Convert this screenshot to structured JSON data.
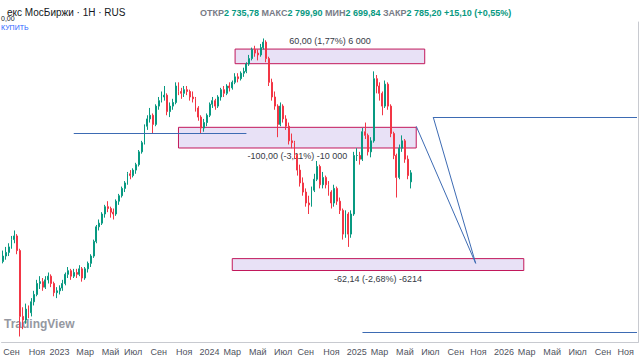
{
  "chart_data": {
    "type": "candlestick",
    "title": "екс МосБиржи · 1Н · RUS",
    "header_values": [
      {
        "label": "ОТКР",
        "text": "2 735,78"
      },
      {
        "label": "МАКС",
        "text": "2 799,90"
      },
      {
        "label": "МИН",
        "text": "2 699,84"
      },
      {
        "label": "ЗАКР",
        "text": "2 785,20"
      }
    ],
    "change": "+15,10 (+0,55%)",
    "widget": {
      "spread": "0,00",
      "button": "КУПИТЬ"
    },
    "watermark": "TradingView",
    "price_tag": "RUS",
    "grid": false,
    "tick_labels": "x",
    "ylim": [
      1860,
      3610
    ],
    "categories": [
      null,
      null,
      null,
      "Сен",
      null,
      null,
      null,
      null,
      null,
      null,
      null,
      null,
      "Ноя",
      null,
      null,
      null,
      null,
      null,
      null,
      null,
      "2023",
      null,
      null,
      null,
      null,
      null,
      null,
      null,
      null,
      "Мар",
      null,
      null,
      null,
      null,
      null,
      null,
      null,
      null,
      "Май",
      null,
      null,
      null,
      null,
      null,
      null,
      null,
      "Июл",
      null,
      null,
      null,
      null,
      null,
      null,
      null,
      null,
      "Сен",
      null,
      null,
      null,
      null,
      null,
      null,
      null,
      null,
      "Ноя",
      null,
      null,
      null,
      null,
      null,
      null,
      null,
      null,
      "2024",
      null,
      null,
      null,
      null,
      null,
      null,
      null,
      "Мар",
      null,
      null,
      null,
      null,
      null,
      null,
      null,
      null,
      "Май",
      null,
      null,
      null,
      null,
      null,
      null,
      null,
      null,
      "Июл",
      null,
      null,
      null,
      null,
      null,
      null,
      null,
      "Сен",
      null,
      null,
      null,
      null,
      null,
      null,
      null,
      null,
      "Ноя",
      null,
      null,
      null,
      null,
      null,
      null,
      null,
      null,
      "2025",
      null,
      null,
      null,
      null,
      null,
      null,
      null,
      "Мар",
      null,
      null,
      null,
      null,
      null,
      null,
      null,
      null,
      "Май",
      null,
      null,
      null,
      null,
      null,
      null,
      null,
      null,
      "Июл",
      null,
      null,
      null,
      null,
      null,
      null,
      null,
      null,
      "Сен",
      null,
      null,
      null,
      null,
      null,
      null,
      null,
      "Ноя",
      null,
      null,
      null,
      null,
      null,
      null,
      null,
      null,
      "2026",
      null,
      null,
      null,
      null,
      null,
      null,
      null,
      "Мар",
      null,
      null,
      null,
      null,
      null,
      null,
      null,
      null,
      "Май",
      null,
      null,
      null,
      null,
      null,
      null,
      null,
      null,
      "Июл",
      null,
      null,
      null,
      null,
      null,
      null,
      null,
      null,
      "Сен",
      null,
      null,
      null,
      null,
      null,
      null,
      null,
      "Ноя",
      null,
      null,
      null,
      null
    ],
    "ohlc": [
      [
        2300,
        2360,
        2290,
        2330
      ],
      [
        2330,
        2380,
        2310,
        2350
      ],
      [
        2350,
        2400,
        2330,
        2380
      ],
      [
        2380,
        2440,
        2370,
        2420
      ],
      [
        2420,
        2470,
        2400,
        2440
      ],
      [
        2440,
        2450,
        2340,
        2360
      ],
      [
        2360,
        2370,
        1890,
        2000
      ],
      [
        2000,
        2050,
        1930,
        1980
      ],
      [
        1980,
        2070,
        1960,
        2040
      ],
      [
        2040,
        2060,
        1990,
        2020
      ],
      [
        2020,
        2100,
        2000,
        2080
      ],
      [
        2080,
        2140,
        2060,
        2120
      ],
      [
        2120,
        2200,
        2110,
        2180
      ],
      [
        2180,
        2220,
        2150,
        2190
      ],
      [
        2190,
        2210,
        2140,
        2160
      ],
      [
        2160,
        2220,
        2150,
        2200
      ],
      [
        2200,
        2240,
        2180,
        2220
      ],
      [
        2220,
        2230,
        2160,
        2180
      ],
      [
        2180,
        2190,
        2110,
        2130
      ],
      [
        2130,
        2160,
        2100,
        2140
      ],
      [
        2140,
        2170,
        2120,
        2155
      ],
      [
        2155,
        2200,
        2140,
        2180
      ],
      [
        2180,
        2240,
        2170,
        2230
      ],
      [
        2230,
        2270,
        2210,
        2250
      ],
      [
        2250,
        2260,
        2200,
        2220
      ],
      [
        2220,
        2260,
        2210,
        2240
      ],
      [
        2240,
        2260,
        2210,
        2230
      ],
      [
        2230,
        2280,
        2220,
        2260
      ],
      [
        2260,
        2270,
        2190,
        2210
      ],
      [
        2210,
        2270,
        2200,
        2260
      ],
      [
        2260,
        2300,
        2240,
        2290
      ],
      [
        2290,
        2340,
        2270,
        2330
      ],
      [
        2330,
        2420,
        2320,
        2410
      ],
      [
        2410,
        2500,
        2400,
        2490
      ],
      [
        2490,
        2530,
        2470,
        2510
      ],
      [
        2510,
        2570,
        2500,
        2560
      ],
      [
        2560,
        2610,
        2540,
        2600
      ],
      [
        2600,
        2630,
        2570,
        2590
      ],
      [
        2590,
        2600,
        2540,
        2570
      ],
      [
        2570,
        2590,
        2530,
        2560
      ],
      [
        2560,
        2640,
        2550,
        2630
      ],
      [
        2630,
        2670,
        2610,
        2660
      ],
      [
        2660,
        2710,
        2650,
        2700
      ],
      [
        2700,
        2740,
        2680,
        2730
      ],
      [
        2730,
        2790,
        2720,
        2780
      ],
      [
        2780,
        2800,
        2750,
        2770
      ],
      [
        2770,
        2810,
        2760,
        2800
      ],
      [
        2800,
        2840,
        2780,
        2830
      ],
      [
        2830,
        2910,
        2820,
        2900
      ],
      [
        2900,
        2960,
        2890,
        2950
      ],
      [
        2950,
        3050,
        2940,
        3040
      ],
      [
        3040,
        3100,
        3020,
        3080
      ],
      [
        3080,
        3140,
        3060,
        3100
      ],
      [
        3100,
        3110,
        3000,
        3050
      ],
      [
        3050,
        3160,
        3040,
        3150
      ],
      [
        3150,
        3200,
        3130,
        3180
      ],
      [
        3180,
        3230,
        3170,
        3200
      ],
      [
        3200,
        3260,
        3180,
        3210
      ],
      [
        3210,
        3220,
        3100,
        3120
      ],
      [
        3120,
        3170,
        3090,
        3150
      ],
      [
        3150,
        3190,
        3130,
        3170
      ],
      [
        3170,
        3280,
        3160,
        3260
      ],
      [
        3260,
        3280,
        3210,
        3230
      ],
      [
        3230,
        3250,
        3190,
        3220
      ],
      [
        3220,
        3260,
        3200,
        3240
      ],
      [
        3240,
        3260,
        3210,
        3230
      ],
      [
        3230,
        3240,
        3180,
        3200
      ],
      [
        3200,
        3230,
        3170,
        3190
      ],
      [
        3190,
        3200,
        3120,
        3140
      ],
      [
        3140,
        3150,
        3070,
        3090
      ],
      [
        3090,
        3100,
        3000,
        3030
      ],
      [
        3030,
        3080,
        3010,
        3060
      ],
      [
        3060,
        3110,
        3040,
        3100
      ],
      [
        3100,
        3170,
        3090,
        3160
      ],
      [
        3160,
        3200,
        3140,
        3180
      ],
      [
        3180,
        3190,
        3130,
        3150
      ],
      [
        3150,
        3210,
        3140,
        3200
      ],
      [
        3200,
        3250,
        3180,
        3240
      ],
      [
        3240,
        3260,
        3200,
        3220
      ],
      [
        3220,
        3270,
        3210,
        3260
      ],
      [
        3260,
        3280,
        3230,
        3250
      ],
      [
        3250,
        3290,
        3240,
        3280
      ],
      [
        3280,
        3330,
        3270,
        3310
      ],
      [
        3310,
        3330,
        3280,
        3300
      ],
      [
        3300,
        3340,
        3290,
        3330
      ],
      [
        3330,
        3360,
        3310,
        3340
      ],
      [
        3340,
        3390,
        3330,
        3380
      ],
      [
        3380,
        3430,
        3370,
        3410
      ],
      [
        3410,
        3470,
        3400,
        3460
      ],
      [
        3460,
        3480,
        3420,
        3440
      ],
      [
        3440,
        3460,
        3400,
        3430
      ],
      [
        3430,
        3490,
        3420,
        3470
      ],
      [
        3470,
        3520,
        3460,
        3500
      ],
      [
        3500,
        3510,
        3390,
        3410
      ],
      [
        3410,
        3420,
        3260,
        3280
      ],
      [
        3280,
        3300,
        3180,
        3200
      ],
      [
        3200,
        3230,
        3130,
        3150
      ],
      [
        3150,
        3160,
        2980,
        3050
      ],
      [
        3050,
        3170,
        3040,
        3150
      ],
      [
        3150,
        3160,
        3060,
        3080
      ],
      [
        3080,
        3100,
        3020,
        3040
      ],
      [
        3040,
        3060,
        2940,
        2960
      ],
      [
        2960,
        3000,
        2920,
        2950
      ],
      [
        2950,
        2960,
        2860,
        2880
      ],
      [
        2880,
        2890,
        2770,
        2800
      ],
      [
        2800,
        2830,
        2710,
        2730
      ],
      [
        2730,
        2760,
        2660,
        2680
      ],
      [
        2680,
        2700,
        2600,
        2620
      ],
      [
        2620,
        2660,
        2560,
        2610
      ],
      [
        2610,
        2710,
        2600,
        2690
      ],
      [
        2690,
        2780,
        2680,
        2750
      ],
      [
        2750,
        2850,
        2740,
        2820
      ],
      [
        2820,
        2830,
        2700,
        2720
      ],
      [
        2720,
        2790,
        2700,
        2760
      ],
      [
        2760,
        2770,
        2700,
        2720
      ],
      [
        2720,
        2740,
        2660,
        2680
      ],
      [
        2680,
        2690,
        2590,
        2620
      ],
      [
        2620,
        2720,
        2600,
        2700
      ],
      [
        2700,
        2710,
        2610,
        2630
      ],
      [
        2630,
        2650,
        2560,
        2580
      ],
      [
        2580,
        2590,
        2420,
        2450
      ],
      [
        2450,
        2580,
        2430,
        2560
      ],
      [
        2560,
        2570,
        2380,
        2450
      ],
      [
        2450,
        2580,
        2430,
        2560
      ],
      [
        2560,
        2900,
        2550,
        2880
      ],
      [
        2880,
        2920,
        2850,
        2880
      ],
      [
        2880,
        2900,
        2830,
        2860
      ],
      [
        2860,
        3030,
        2850,
        3010
      ],
      [
        3010,
        3060,
        2970,
        2990
      ],
      [
        2990,
        3000,
        2880,
        2900
      ],
      [
        2900,
        2980,
        2870,
        2960
      ],
      [
        2960,
        3340,
        2950,
        3300
      ],
      [
        3300,
        3320,
        3220,
        3260
      ],
      [
        3260,
        3280,
        3180,
        3220
      ],
      [
        3220,
        3230,
        3100,
        3150
      ],
      [
        3150,
        3290,
        3140,
        3270
      ],
      [
        3270,
        3280,
        3130,
        3150
      ],
      [
        3150,
        3160,
        2980,
        3000
      ],
      [
        3000,
        3010,
        2860,
        2880
      ],
      [
        2880,
        2890,
        2650,
        2760
      ],
      [
        2760,
        2940,
        2750,
        2920
      ],
      [
        2920,
        2990,
        2900,
        2960
      ],
      [
        2960,
        2970,
        2840,
        2860
      ],
      [
        2860,
        2880,
        2750,
        2770.1
      ],
      [
        2735.78,
        2799.9,
        2699.84,
        2785.2
      ],
      null,
      null,
      null,
      null,
      null,
      null,
      null,
      null,
      null,
      null,
      null,
      null,
      null,
      null,
      null,
      null,
      null,
      null,
      null,
      null,
      null,
      null,
      null,
      null,
      null,
      null,
      null,
      null,
      null,
      null,
      null,
      null,
      null,
      null,
      null,
      null,
      null,
      null,
      null,
      null,
      null,
      null,
      null,
      null,
      null,
      null,
      null,
      null,
      null,
      null,
      null,
      null,
      null,
      null,
      null,
      null,
      null,
      null,
      null,
      null,
      null,
      null,
      null,
      null,
      null,
      null,
      null,
      null,
      null,
      null,
      null,
      null,
      null,
      null,
      null,
      null,
      null,
      null,
      null,
      null
    ],
    "zones": [
      {
        "x": [
          82,
          149
        ],
        "y": [
          3382,
          3462
        ],
        "label": "60,00 (1,77%) 6 000"
      },
      {
        "x": [
          62,
          146
        ],
        "y": [
          2921,
          3034
        ],
        "label": "-100,00 (-3,11%) -10 000"
      },
      {
        "x": [
          81,
          184
        ],
        "y": [
          2251,
          2316
        ],
        "label": "-62,14 (-2,68%) -6214"
      }
    ],
    "levels": [
      {
        "value": 3000,
        "x": [
          25,
          86
        ]
      },
      {
        "value": 3090,
        "x": [
          152,
          224
        ]
      },
      {
        "value": 1915,
        "x": [
          127,
          224
        ]
      }
    ],
    "trend_lines": [
      {
        "points": [
          [
            152,
            3090
          ],
          [
            167,
            2290
          ]
        ]
      },
      {
        "points": [
          [
            146,
            3040
          ],
          [
            167,
            2290
          ]
        ]
      }
    ]
  }
}
